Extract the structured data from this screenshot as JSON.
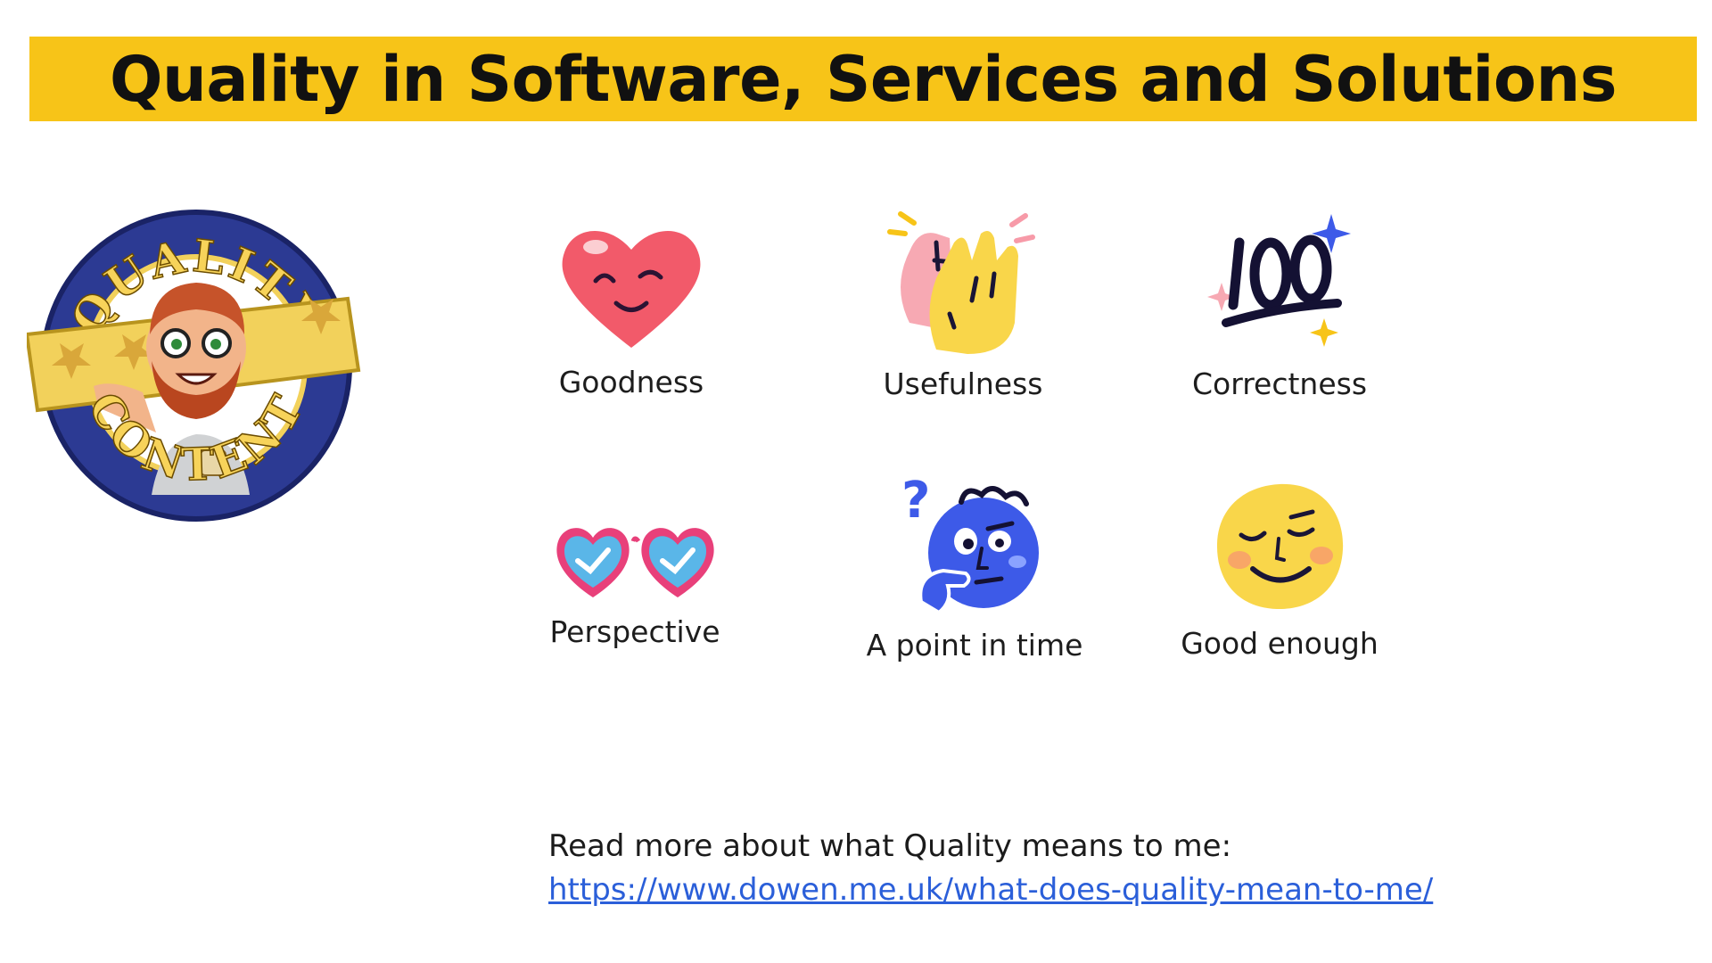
{
  "title": "Quality in Software, Services and Solutions",
  "colors": {
    "title_bar": "#f7c418",
    "link": "#2b5fd9",
    "badge_ring": "#2c3a93",
    "badge_banner": "#f2d15b"
  },
  "logo": {
    "top_text": "QUALITY",
    "bottom_text": "CONTENT"
  },
  "tiles": [
    {
      "label": "Goodness",
      "icon": "smiling-heart-icon"
    },
    {
      "label": "Usefulness",
      "icon": "high-five-icon"
    },
    {
      "label": "Correctness",
      "icon": "hundred-points-icon"
    },
    {
      "label": "Perspective",
      "icon": "heart-glasses-icon"
    },
    {
      "label": "A point in time",
      "icon": "thinking-face-icon"
    },
    {
      "label": "Good enough",
      "icon": "relieved-face-icon"
    }
  ],
  "footer": {
    "text": "Read more about what Quality means to me:",
    "link": "https://www.dowen.me.uk/what-does-quality-mean-to-me/"
  }
}
